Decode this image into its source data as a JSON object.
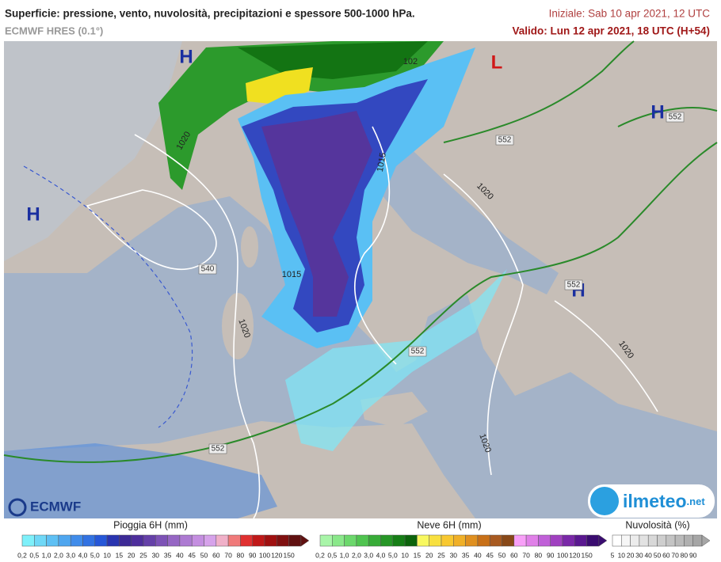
{
  "header": {
    "title": "Superficie: pressione, vento, nuvolosità, precipitazioni e spessore 500-1000 hPa.",
    "model": "ECMWF HRES (0.1°)",
    "init": "Iniziale: Sab 10 apr 2021, 12 UTC",
    "valid": "Valido: Lun 12 apr 2021, 18 UTC (H+54)"
  },
  "map": {
    "pressure_centers": [
      {
        "label": "H",
        "color": "#1a2fa0"
      },
      {
        "label": "L",
        "color": "#d01818"
      },
      {
        "label": "H",
        "color": "#1a2fa0"
      },
      {
        "label": "H",
        "color": "#1a2fa0"
      },
      {
        "label": "H",
        "color": "#1a2fa0"
      }
    ],
    "isobar_labels": [
      "1020",
      "1015",
      "1020",
      "1015",
      "1020",
      "1020",
      "1020",
      "102"
    ],
    "thickness_labels": [
      "552",
      "552",
      "552",
      "552",
      "552",
      "540"
    ]
  },
  "logos": {
    "left": "ECMWF",
    "right": "ilmeteo",
    "right_suffix": ".net"
  },
  "legends": [
    {
      "title": "Pioggia 6H (mm)",
      "labels": [
        "0,2",
        "0,5",
        "1,0",
        "2,0",
        "3,0",
        "4,0",
        "5,0",
        "10",
        "15",
        "20",
        "25",
        "30",
        "35",
        "40",
        "45",
        "50",
        "60",
        "70",
        "80",
        "90",
        "100",
        "120",
        "150"
      ],
      "colors": [
        "#7ef0fa",
        "#6fd8f7",
        "#5ec0f4",
        "#4fa6ef",
        "#408cea",
        "#3272e2",
        "#2657d8",
        "#2a34b0",
        "#3d2a96",
        "#4e2e9c",
        "#6540a8",
        "#7d52b6",
        "#9666c4",
        "#ad7ad2",
        "#c48ee0",
        "#d6a2ea",
        "#f0b0c8",
        "#f07a7a",
        "#e03030",
        "#c01818",
        "#a01010",
        "#801010",
        "#601010"
      ]
    },
    {
      "title": "Neve 6H (mm)",
      "labels": [
        "0,2",
        "0,5",
        "1,0",
        "2,0",
        "3,0",
        "4,0",
        "5,0",
        "10",
        "15",
        "20",
        "25",
        "30",
        "35",
        "40",
        "45",
        "50",
        "60",
        "70",
        "80",
        "90",
        "100",
        "120",
        "150"
      ],
      "colors": [
        "#a8f5a8",
        "#8ae88a",
        "#6cd86c",
        "#50c450",
        "#38ac38",
        "#269626",
        "#167e16",
        "#0c640c",
        "#f8f860",
        "#f8e040",
        "#f8c830",
        "#f0b028",
        "#e09020",
        "#c87018",
        "#a85a20",
        "#884818",
        "#f8a0f8",
        "#e080e8",
        "#c060d8",
        "#a040c0",
        "#7a28a8",
        "#5a1890",
        "#3a0c70"
      ]
    },
    {
      "title": "Nuvolosità (%)",
      "labels": [
        "5",
        "10",
        "20",
        "30",
        "40",
        "50",
        "60",
        "70",
        "80",
        "90"
      ],
      "colors": [
        "#ffffff",
        "#f6f6f6",
        "#ececec",
        "#e2e2e2",
        "#d8d8d8",
        "#cecece",
        "#c4c4c4",
        "#bababa",
        "#b0b0b0",
        "#a6a6a6"
      ]
    }
  ]
}
